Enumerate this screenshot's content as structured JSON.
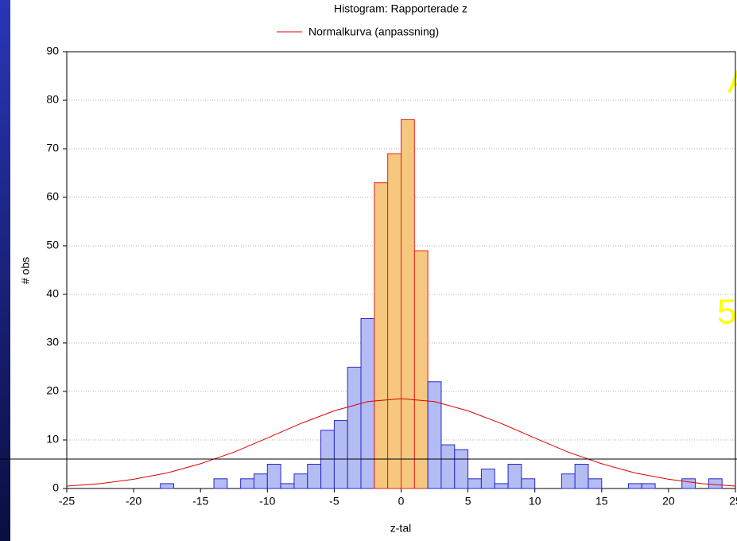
{
  "chart_data": {
    "type": "histogram",
    "title": "Histogram: Rapporterade z",
    "xlabel": "z-tal",
    "ylabel": "# obs",
    "bins": [
      -25,
      -24,
      -23,
      -22,
      -21,
      -20,
      -19,
      -18,
      -17,
      -16,
      -15,
      -14,
      -13,
      -12,
      -11,
      -10,
      -9,
      -8,
      -7,
      -6,
      -5,
      -4,
      -3,
      -2,
      -1,
      0,
      1,
      2,
      3,
      4,
      5,
      6,
      7,
      8,
      9,
      10,
      11,
      12,
      13,
      14,
      15,
      16,
      17,
      18,
      19,
      20,
      21,
      22,
      23,
      24,
      25
    ],
    "values": [
      0,
      0,
      0,
      0,
      0,
      0,
      0,
      1,
      0,
      0,
      0,
      2,
      0,
      2,
      3,
      5,
      1,
      3,
      5,
      12,
      14,
      25,
      35,
      63,
      69,
      76,
      49,
      22,
      9,
      8,
      2,
      4,
      1,
      5,
      2,
      0,
      0,
      3,
      5,
      2,
      0,
      0,
      1,
      1,
      0,
      0,
      2,
      0,
      2,
      0
    ],
    "colors": [
      "#b4bcf4",
      "#b4bcf4",
      "#b4bcf4",
      "#b4bcf4",
      "#b4bcf4",
      "#b4bcf4",
      "#b4bcf4",
      "#b4bcf4",
      "#b4bcf4",
      "#b4bcf4",
      "#b4bcf4",
      "#b4bcf4",
      "#b4bcf4",
      "#b4bcf4",
      "#b4bcf4",
      "#b4bcf4",
      "#b4bcf4",
      "#b4bcf4",
      "#b4bcf4",
      "#b4bcf4",
      "#b4bcf4",
      "#b4bcf4",
      "#b4bcf4",
      "#f6c77e",
      "#f6c77e",
      "#f6c77e",
      "#f6c77e",
      "#b4bcf4",
      "#b4bcf4",
      "#b4bcf4",
      "#b4bcf4",
      "#b4bcf4",
      "#b4bcf4",
      "#b4bcf4",
      "#b4bcf4",
      "#b4bcf4",
      "#b4bcf4",
      "#b4bcf4",
      "#b4bcf4",
      "#b4bcf4",
      "#b4bcf4",
      "#b4bcf4",
      "#b4bcf4",
      "#b4bcf4",
      "#b4bcf4",
      "#b4bcf4",
      "#b4bcf4",
      "#b4bcf4",
      "#b4bcf4",
      "#b4bcf4"
    ],
    "edge_colors": [
      "#2828c8",
      "#2828c8",
      "#2828c8",
      "#2828c8",
      "#2828c8",
      "#2828c8",
      "#2828c8",
      "#2828c8",
      "#2828c8",
      "#2828c8",
      "#2828c8",
      "#2828c8",
      "#2828c8",
      "#2828c8",
      "#2828c8",
      "#2828c8",
      "#2828c8",
      "#2828c8",
      "#2828c8",
      "#2828c8",
      "#2828c8",
      "#2828c8",
      "#2828c8",
      "#e02020",
      "#e02020",
      "#e02020",
      "#e02020",
      "#2828c8",
      "#2828c8",
      "#2828c8",
      "#2828c8",
      "#2828c8",
      "#2828c8",
      "#2828c8",
      "#2828c8",
      "#2828c8",
      "#2828c8",
      "#2828c8",
      "#2828c8",
      "#2828c8",
      "#2828c8",
      "#2828c8",
      "#2828c8",
      "#2828c8",
      "#2828c8",
      "#2828c8",
      "#2828c8",
      "#2828c8",
      "#2828c8",
      "#2828c8"
    ],
    "curve": {
      "name": "Normalkurva (anpassning)",
      "color": "#e00000",
      "x": [
        -25,
        -22.5,
        -20,
        -17.5,
        -15,
        -12.5,
        -10,
        -7.5,
        -5,
        -2.5,
        0,
        2.5,
        5,
        7.5,
        10,
        12.5,
        15,
        17.5,
        20,
        22.5,
        25
      ],
      "values": [
        0.5,
        1.0,
        1.9,
        3.2,
        5.1,
        7.5,
        10.4,
        13.4,
        16.0,
        17.9,
        18.5,
        17.9,
        16.0,
        13.4,
        10.4,
        7.5,
        5.1,
        3.2,
        1.9,
        1.0,
        0.5
      ]
    },
    "xlim": [
      -25,
      25
    ],
    "ylim": [
      0,
      90
    ],
    "xticks": [
      -25,
      -20,
      -15,
      -10,
      -5,
      0,
      5,
      10,
      15,
      20,
      25
    ],
    "yticks": [
      0,
      10,
      20,
      30,
      40,
      50,
      60,
      70,
      80,
      90
    ],
    "grid": true,
    "overlay_texts": [
      "A",
      "5"
    ]
  }
}
